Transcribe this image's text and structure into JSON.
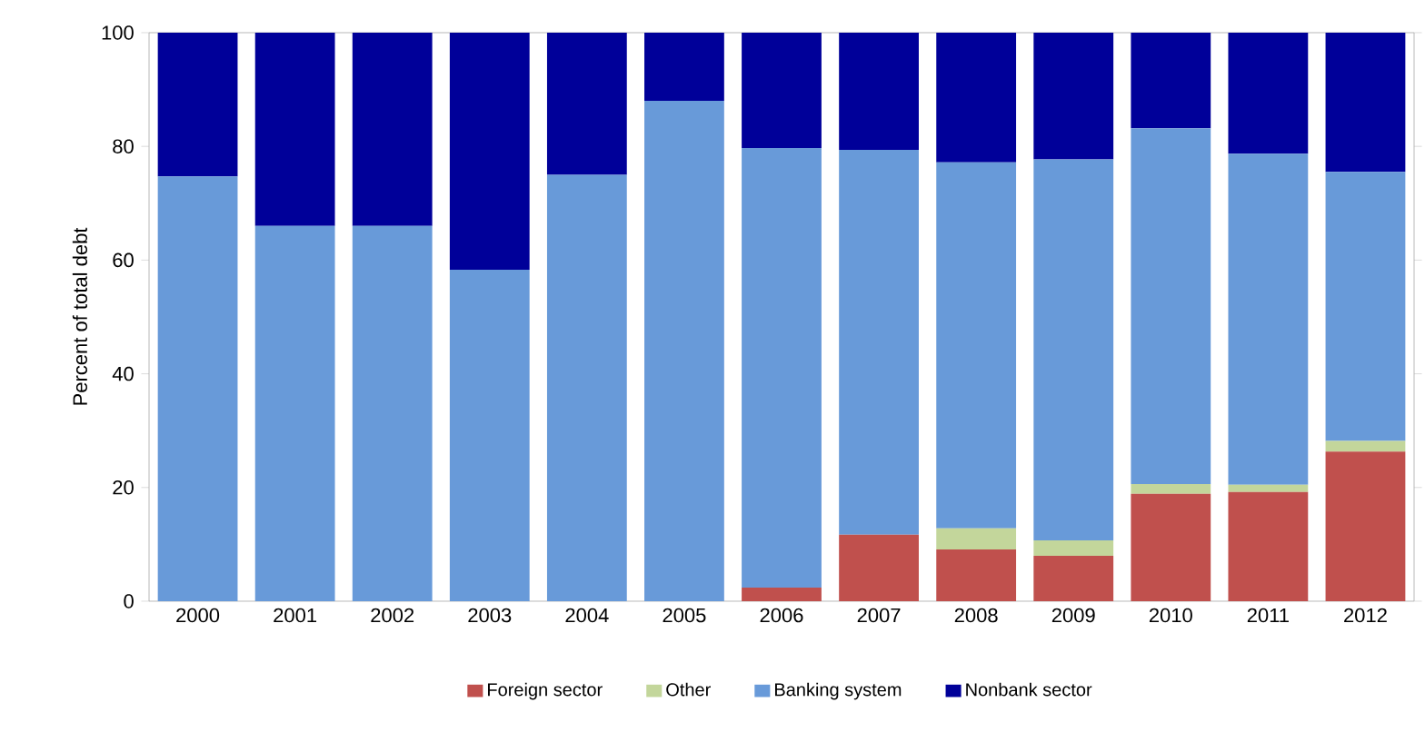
{
  "chart_data": {
    "type": "bar",
    "stacked": true,
    "ylabel": "Percent of total debt",
    "categories": [
      "2000",
      "2001",
      "2002",
      "2003",
      "2004",
      "2005",
      "2006",
      "2007",
      "2008",
      "2009",
      "2010",
      "2011",
      "2012"
    ],
    "series": [
      {
        "name": "Foreign sector",
        "color": "#c0504d",
        "values": [
          0,
          0,
          0,
          0,
          0,
          0,
          2.4,
          11.7,
          9.1,
          8.0,
          18.9,
          19.2,
          26.3
        ]
      },
      {
        "name": "Other",
        "color": "#c3d69b",
        "values": [
          0,
          0,
          0,
          0,
          0,
          0,
          0,
          0,
          3.7,
          2.7,
          1.7,
          1.3,
          1.9
        ]
      },
      {
        "name": "Banking system",
        "color": "#689ad9",
        "values": [
          74.7,
          66.0,
          66.0,
          58.3,
          75.0,
          88.0,
          77.3,
          67.7,
          64.4,
          67.0,
          62.6,
          58.2,
          47.3
        ]
      },
      {
        "name": "Nonbank sector",
        "color": "#000099",
        "values": [
          25.3,
          34.0,
          34.0,
          41.7,
          25.0,
          12.0,
          20.3,
          20.6,
          22.8,
          22.3,
          16.8,
          21.3,
          24.5
        ]
      }
    ],
    "ylim": [
      0,
      100
    ],
    "yticks": [
      0,
      20,
      40,
      60,
      80,
      100
    ],
    "grid": false,
    "legend": "bottom"
  }
}
